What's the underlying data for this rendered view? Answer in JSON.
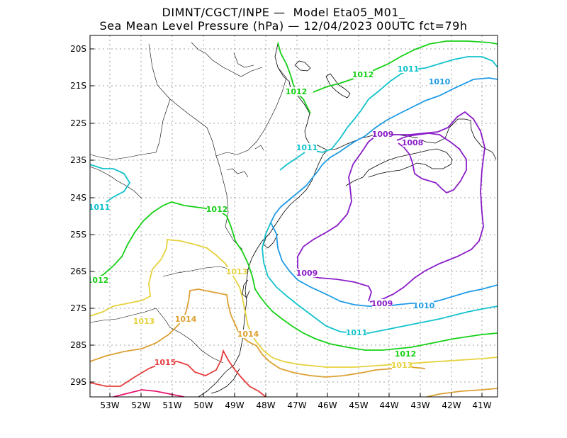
{
  "title_line1": "DIMNT/CGCT/INPE —  Model Eta05_M01_",
  "title_line2": "Sea Mean Level Pressure (hPa) — 12/04/2023 00UTC fct=79h",
  "axes": {
    "lon_labels": [
      "53W",
      "52W",
      "51W",
      "50W",
      "49W",
      "48W",
      "47W",
      "46W",
      "45W",
      "44W",
      "43W",
      "42W",
      "41W"
    ],
    "lat_labels": [
      "20S",
      "21S",
      "22S",
      "23S",
      "24S",
      "25S",
      "26S",
      "27S",
      "28S",
      "29S"
    ]
  },
  "colors": {
    "1008": "#8a1dc8",
    "1009": "#8a1dc8",
    "1010": "#1e9be6",
    "1011": "#12c2cc",
    "1012": "#16d016",
    "1013": "#e6d23c",
    "1014": "#dca032",
    "1015": "#e63c3c",
    "1016": "#e6146e",
    "coast": "#000000"
  },
  "contour_labels": [
    {
      "text": "1012",
      "isobar": "1012"
    },
    {
      "text": "1011",
      "isobar": "1011"
    },
    {
      "text": "1010",
      "isobar": "1010"
    },
    {
      "text": "1012",
      "isobar": "1012"
    },
    {
      "text": "1009",
      "isobar": "1009"
    },
    {
      "text": "1008",
      "isobar": "1008"
    },
    {
      "text": "1011",
      "isobar": "1011"
    },
    {
      "text": "1011",
      "isobar": "1011"
    },
    {
      "text": "1012",
      "isobar": "1012"
    },
    {
      "text": "1012",
      "isobar": "1012"
    },
    {
      "text": "1013",
      "isobar": "1013"
    },
    {
      "text": "1009",
      "isobar": "1009"
    },
    {
      "text": "1009",
      "isobar": "1009"
    },
    {
      "text": "1010",
      "isobar": "1010"
    },
    {
      "text": "1014",
      "isobar": "1014"
    },
    {
      "text": "1013",
      "isobar": "1013"
    },
    {
      "text": "1011",
      "isobar": "1011"
    },
    {
      "text": "1014",
      "isobar": "1014"
    },
    {
      "text": "1012",
      "isobar": "1012"
    },
    {
      "text": "1013",
      "isobar": "1013"
    },
    {
      "text": "1015",
      "isobar": "1015"
    }
  ]
}
